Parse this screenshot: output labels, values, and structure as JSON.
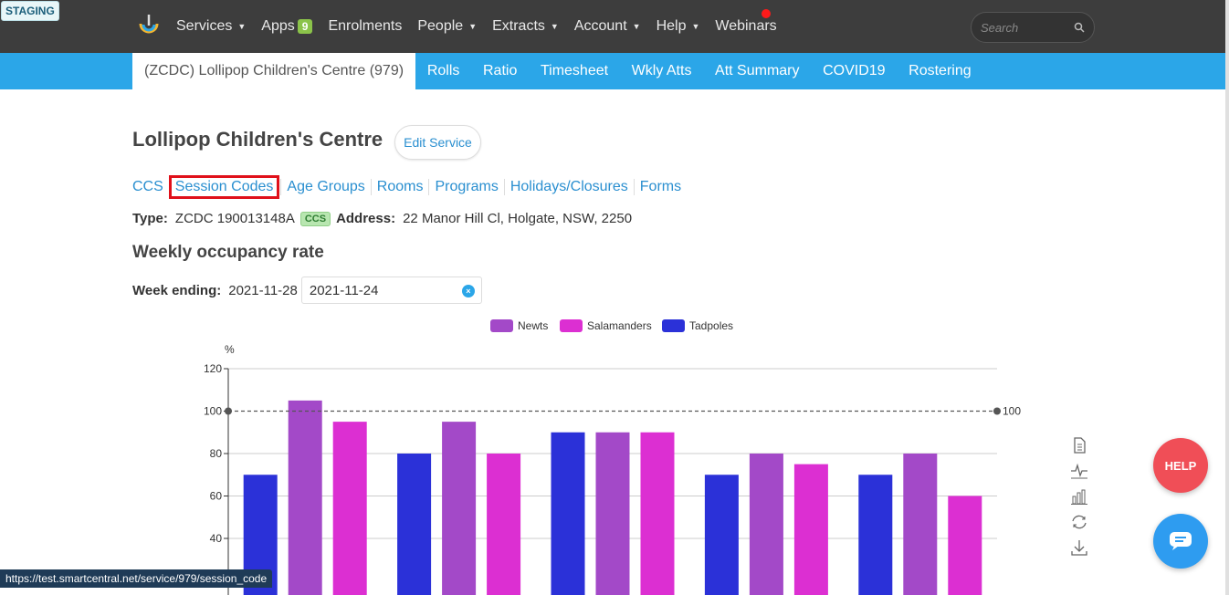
{
  "env_badge": "STAGING",
  "topnav": [
    {
      "label": "Services",
      "caret": true
    },
    {
      "label": "Apps",
      "badge": "9"
    },
    {
      "label": "Enrolments"
    },
    {
      "label": "People",
      "caret": true
    },
    {
      "label": "Extracts",
      "caret": true
    },
    {
      "label": "Account",
      "caret": true
    },
    {
      "label": "Help",
      "caret": true
    },
    {
      "label": "Webinars"
    }
  ],
  "search": {
    "placeholder": "Search"
  },
  "subnav": {
    "active": "(ZCDC) Lollipop Children's Centre (979)",
    "items": [
      "Rolls",
      "Ratio",
      "Timesheet",
      "Wkly Atts",
      "Att Summary",
      "COVID19",
      "Rostering"
    ]
  },
  "page": {
    "title": "Lollipop Children's Centre",
    "edit_button": "Edit Service",
    "tabs": [
      "CCS",
      "Session Codes",
      "Age Groups",
      "Rooms",
      "Programs",
      "Holidays/Closures",
      "Forms"
    ],
    "type_label": "Type:",
    "type_value": "ZCDC 190013148A",
    "type_badge": "CCS",
    "address_label": "Address:",
    "address_value": "22 Manor Hill Cl, Holgate, NSW, 2250",
    "section_title": "Weekly occupancy rate",
    "week_label": "Week ending:",
    "week_value": "2021-11-28",
    "week_input": "2021-11-24"
  },
  "chart_data": {
    "type": "bar",
    "ylabel": "%",
    "ylim": [
      0,
      120
    ],
    "yticks": [
      40,
      60,
      80,
      100,
      120
    ],
    "markline": 100,
    "legend": [
      {
        "name": "Newts",
        "color": "#a349c8"
      },
      {
        "name": "Salamanders",
        "color": "#dc2fd2"
      },
      {
        "name": "Tadpoles",
        "color": "#2b31d8"
      }
    ],
    "groups": [
      [
        {
          "series": "Tadpoles",
          "value": 70
        },
        {
          "series": "Newts",
          "value": 105
        },
        {
          "series": "Salamanders",
          "value": 95
        }
      ],
      [
        {
          "series": "Tadpoles",
          "value": 80
        },
        {
          "series": "Newts",
          "value": 95
        },
        {
          "series": "Salamanders",
          "value": 80
        }
      ],
      [
        {
          "series": "Tadpoles",
          "value": 90
        },
        {
          "series": "Newts",
          "value": 90
        },
        {
          "series": "Salamanders",
          "value": 90
        }
      ],
      [
        {
          "series": "Tadpoles",
          "value": 70
        },
        {
          "series": "Newts",
          "value": 80
        },
        {
          "series": "Salamanders",
          "value": 75
        }
      ],
      [
        {
          "series": "Tadpoles",
          "value": 70
        },
        {
          "series": "Newts",
          "value": 80
        },
        {
          "series": "Salamanders",
          "value": 60
        }
      ]
    ]
  },
  "help_button": "HELP",
  "status_url": "https://test.smartcentral.net/service/979/session_code"
}
